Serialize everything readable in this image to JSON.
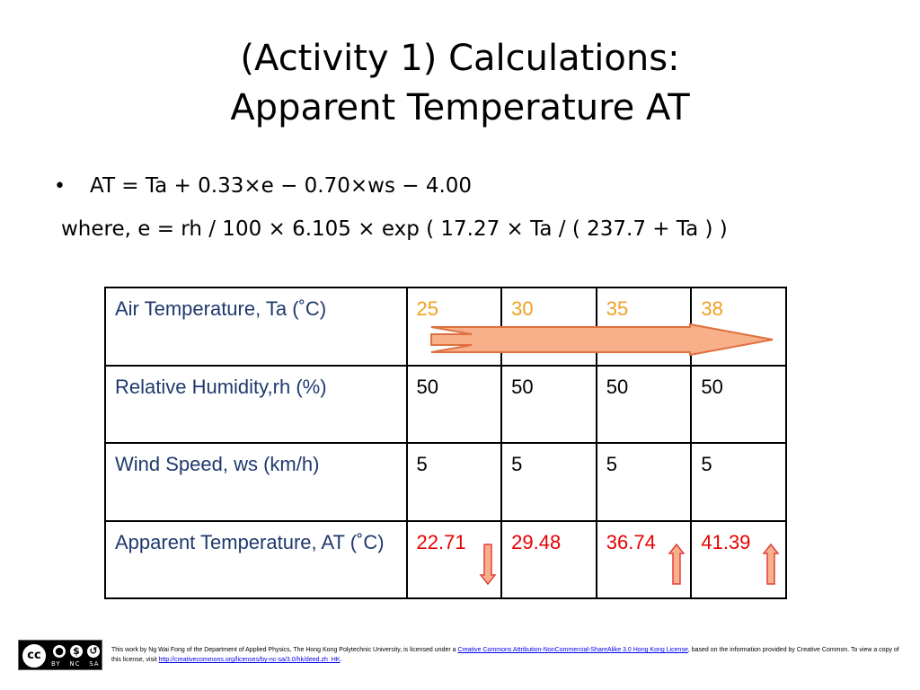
{
  "slide": {
    "title_line1": "(Activity 1) Calculations:",
    "title_line2": "Apparent Temperature AT",
    "bullet_symbol": "•",
    "formula": "AT = Ta + 0.33×e − 0.70×ws − 4.00",
    "where": "where, e = rh / 100 × 6.105 × exp ( 17.27 × Ta / ( 237.7 + Ta ) )"
  },
  "table": {
    "rows": [
      {
        "label": "Air Temperature, Ta  (˚C)",
        "values": [
          "25",
          "30",
          "35",
          "38"
        ],
        "color": "#f0a020"
      },
      {
        "label": "Relative Humidity,rh (%)",
        "values": [
          "50",
          "50",
          "50",
          "50"
        ],
        "color": "#000000"
      },
      {
        "label": "Wind Speed, ws (km/h)",
        "values": [
          "5",
          "5",
          "5",
          "5"
        ],
        "color": "#000000"
      },
      {
        "label": "Apparent Temperature, AT (˚C)",
        "values": [
          "22.71",
          "29.48",
          "36.74",
          "41.39"
        ],
        "color": "#e60000"
      }
    ],
    "trend_arrows": [
      "down",
      "none",
      "up",
      "up"
    ],
    "label_color": "#1f3a6e",
    "arrow_fill": "#f7b08a",
    "arrow_stroke": "#e07040"
  },
  "footer": {
    "cc_label": "cc",
    "cc_icon_labels": [
      "BY",
      "NC",
      "SA"
    ],
    "text_1": "This work by Ng Wai Fong of the Department of Applied Physics, The Hong Kong Polytechnic University, is licensed under a ",
    "link_1": "Creative Commons Attribution-NonCommercial-ShareAlike 3.0 Hong Kong License",
    "text_2": ", based on the information provided by Creative Common. To view a copy of this license, visit ",
    "link_2": "http://creativecommons.org/licenses/by-nc-sa/3.0/hk/deed.zh_HK",
    "text_3": "."
  }
}
